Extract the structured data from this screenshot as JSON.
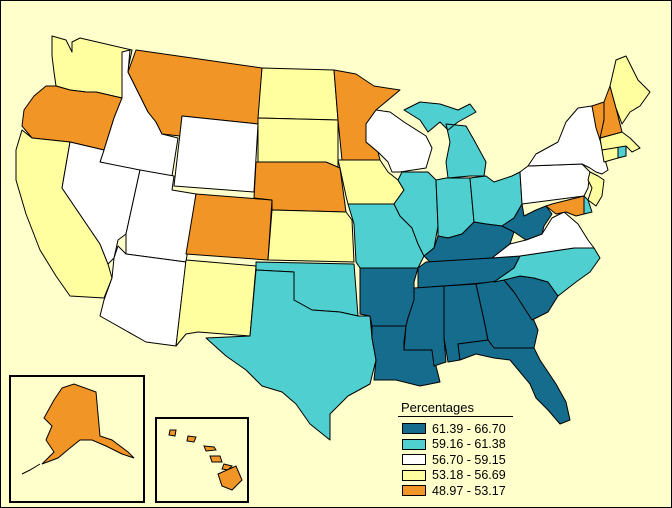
{
  "legend": {
    "title": "Percentages",
    "classes": [
      {
        "label": "61.39 - 66.70",
        "color": "#156c8c"
      },
      {
        "label": "59.16 - 61.38",
        "color": "#4fcfcf"
      },
      {
        "label": "56.70 - 59.15",
        "color": "#ffffff"
      },
      {
        "label": "53.18 - 56.69",
        "color": "#ffffa0"
      },
      {
        "label": "48.97 - 53.17",
        "color": "#f29527"
      }
    ]
  },
  "state_classes": {
    "WA": "53.18 - 56.69",
    "OR": "48.97 - 53.17",
    "CA": "53.18 - 56.69",
    "ID": "56.70 - 59.15",
    "NV": "56.70 - 59.15",
    "MT": "48.97 - 53.17",
    "WY": "56.70 - 59.15",
    "UT": "56.70 - 59.15",
    "AZ": "56.70 - 59.15",
    "CO": "48.97 - 53.17",
    "NM": "53.18 - 56.69",
    "ND": "53.18 - 56.69",
    "SD": "53.18 - 56.69",
    "NE": "48.97 - 53.17",
    "KS": "53.18 - 56.69",
    "OK": "59.16 - 61.38",
    "TX": "59.16 - 61.38",
    "MN": "48.97 - 53.17",
    "IA": "53.18 - 56.69",
    "MO": "59.16 - 61.38",
    "AR": "61.39 - 66.70",
    "LA": "61.39 - 66.70",
    "WI": "56.70 - 59.15",
    "IL": "59.16 - 61.38",
    "MI": "59.16 - 61.38",
    "IN": "59.16 - 61.38",
    "OH": "59.16 - 61.38",
    "KY": "61.39 - 66.70",
    "TN": "61.39 - 66.70",
    "MS": "61.39 - 66.70",
    "AL": "61.39 - 66.70",
    "GA": "61.39 - 66.70",
    "FL": "61.39 - 66.70",
    "SC": "61.39 - 66.70",
    "NC": "59.16 - 61.38",
    "VA": "56.70 - 59.15",
    "WV": "61.39 - 66.70",
    "PA": "56.70 - 59.15",
    "NY": "56.70 - 59.15",
    "NJ": "53.18 - 56.69",
    "DE": "59.16 - 61.38",
    "MD": "48.97 - 53.17",
    "CT": "53.18 - 56.69",
    "RI": "59.16 - 61.38",
    "MA": "53.18 - 56.69",
    "VT": "48.97 - 53.17",
    "NH": "48.97 - 53.17",
    "ME": "53.18 - 56.69",
    "AK": "48.97 - 53.17",
    "HI": "48.97 - 53.17"
  }
}
